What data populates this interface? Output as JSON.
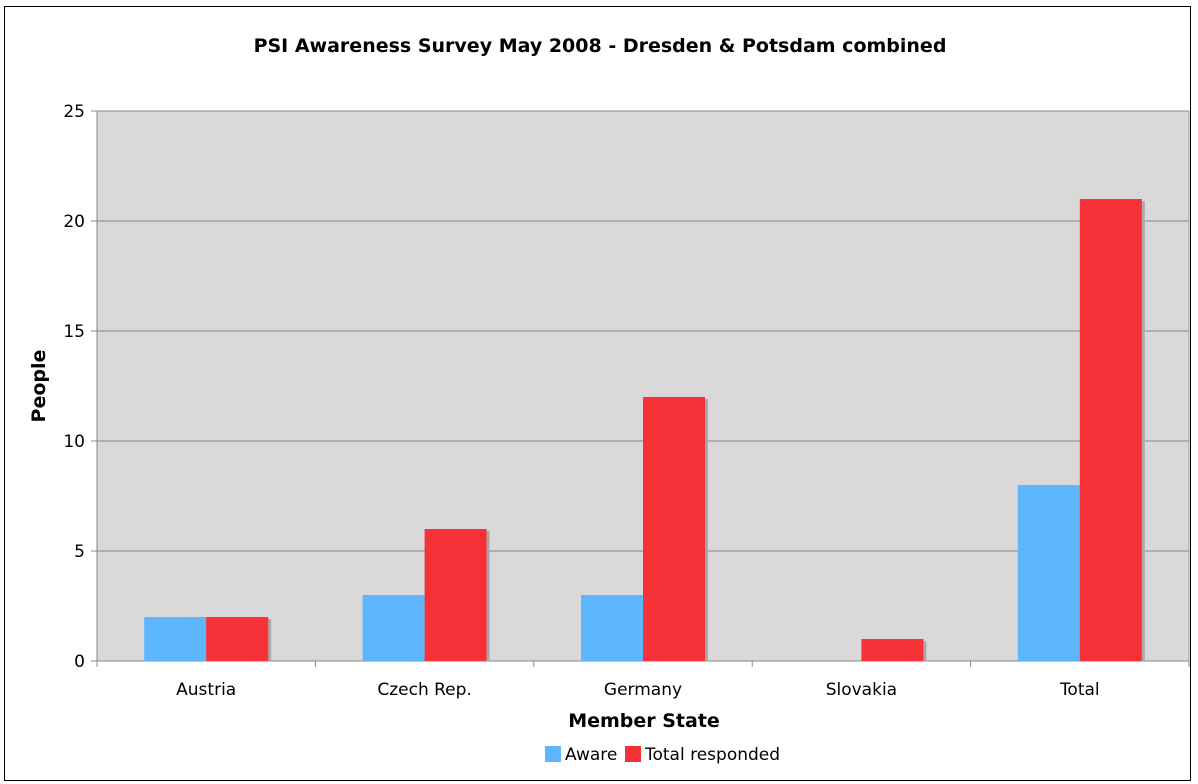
{
  "page_caption": "",
  "chart_data": {
    "type": "bar",
    "title": "PSI Awareness Survey May 2008 - Dresden & Potsdam combined",
    "xlabel": "Member State",
    "ylabel": "People",
    "categories": [
      "Austria",
      "Czech Rep.",
      "Germany",
      "Slovakia",
      "Total"
    ],
    "series": [
      {
        "name": "Aware",
        "values": [
          2,
          3,
          3,
          0,
          8
        ],
        "color": "#5eb6ff"
      },
      {
        "name": "Total responded",
        "values": [
          2,
          6,
          12,
          1,
          21
        ],
        "color": "#f63238"
      }
    ],
    "ylim": [
      0,
      25
    ],
    "yticks": [
      0,
      5,
      10,
      15,
      20,
      25
    ],
    "grid": true,
    "plot_background": "#d9d9d9",
    "legend_position": "bottom"
  }
}
